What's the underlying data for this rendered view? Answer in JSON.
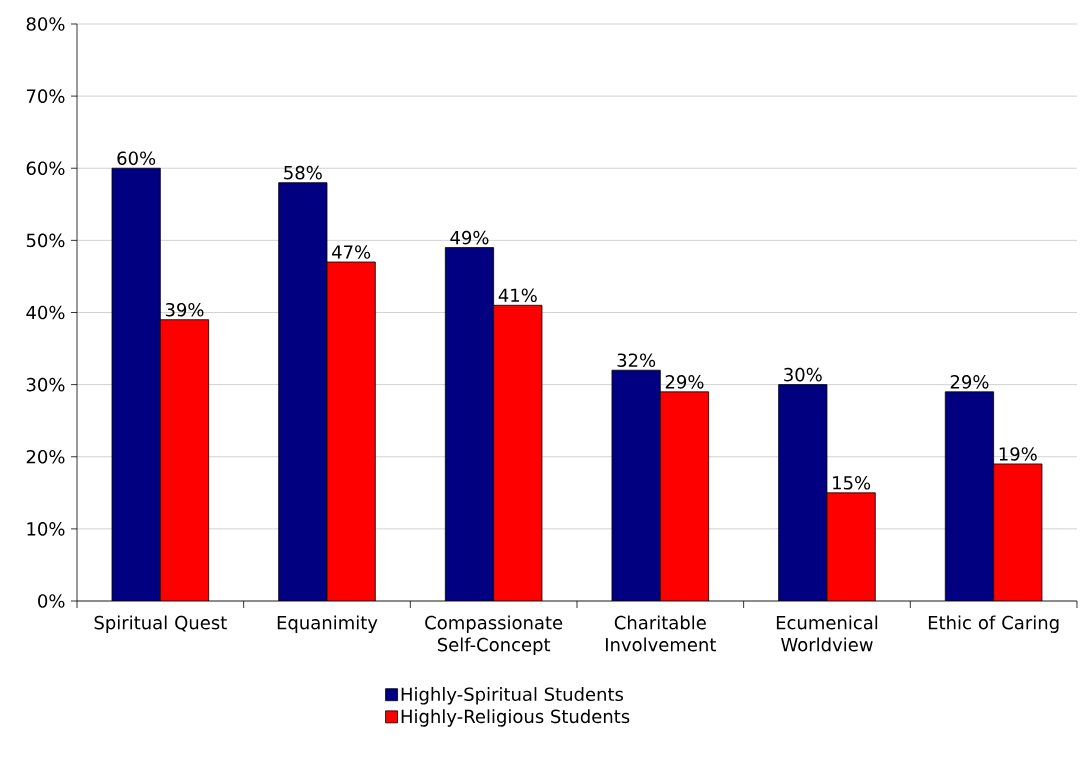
{
  "chart_data": {
    "type": "bar",
    "categories": [
      "Spiritual Quest",
      "Equanimity",
      "Compassionate Self-Concept",
      "Charitable Involvement",
      "Ecumenical Worldview",
      "Ethic of Caring"
    ],
    "series": [
      {
        "name": "Highly-Spiritual Students",
        "color": "#000080",
        "values": [
          60,
          58,
          49,
          32,
          30,
          29
        ],
        "value_labels": [
          "60%",
          "58%",
          "49%",
          "32%",
          "30%",
          "29%"
        ]
      },
      {
        "name": "Highly-Religious Students",
        "color": "#ff0000",
        "values": [
          39,
          47,
          41,
          29,
          15,
          19
        ],
        "value_labels": [
          "39%",
          "47%",
          "41%",
          "29%",
          "15%",
          "19%"
        ]
      }
    ],
    "ylim": [
      0,
      80
    ],
    "yticks": [
      {
        "value": 0,
        "label": "0%"
      },
      {
        "value": 10,
        "label": "10%"
      },
      {
        "value": 20,
        "label": "20%"
      },
      {
        "value": 30,
        "label": "30%"
      },
      {
        "value": 40,
        "label": "40%"
      },
      {
        "value": 50,
        "label": "50%"
      },
      {
        "value": 60,
        "label": "60%"
      },
      {
        "value": 70,
        "label": "70%"
      },
      {
        "value": 80,
        "label": "80%"
      }
    ],
    "grid": "y",
    "legend": "bottom"
  }
}
